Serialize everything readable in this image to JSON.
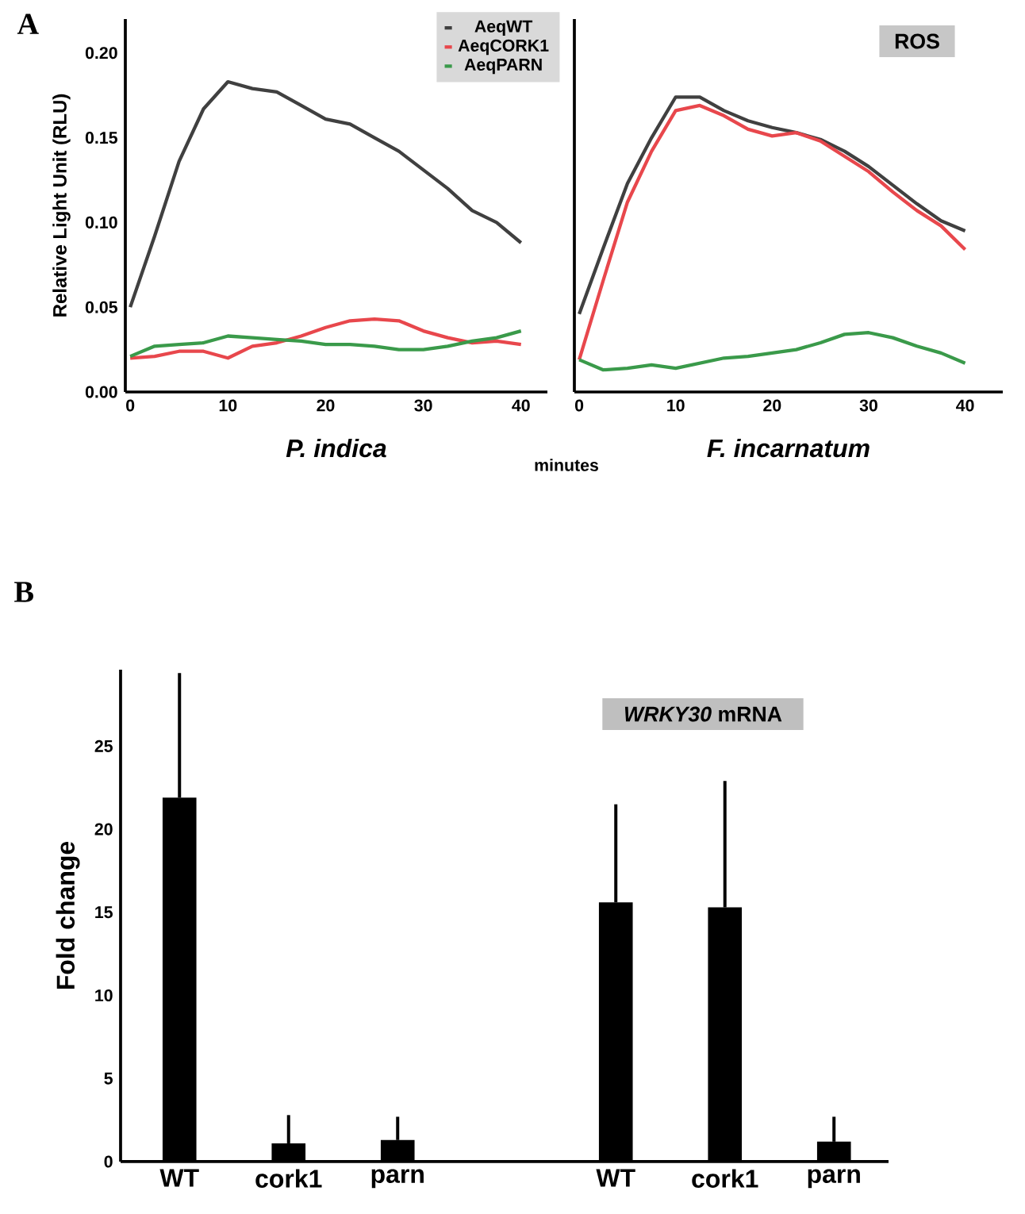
{
  "chart_data": [
    {
      "type": "line",
      "ylabel": "Relative Light Unit (RLU)",
      "xlabel": "P. indica",
      "annotations": [
        "A",
        "minutes"
      ],
      "x": [
        0,
        2.5,
        5,
        7.5,
        10,
        12.5,
        15,
        17.5,
        20,
        22.5,
        25,
        27.5,
        30,
        32.5,
        35,
        37.5,
        40
      ],
      "xlim": [
        -0.5,
        42.7
      ],
      "xticks": [
        0,
        10,
        20,
        30,
        40
      ],
      "ylim": [
        0,
        0.22
      ],
      "yticks": [
        {
          "value": 0,
          "label": "0.00"
        },
        0.05,
        {
          "value": 0.1,
          "label": "0.10"
        },
        0.15,
        {
          "value": 0.2,
          "label": "0.20"
        }
      ],
      "legend": "top right",
      "series": [
        {
          "name": "AeqWT",
          "color": "#404040",
          "values": [
            0.05,
            0.092,
            0.136,
            0.167,
            0.183,
            0.179,
            0.177,
            0.169,
            0.161,
            0.158,
            0.15,
            0.142,
            0.131,
            0.12,
            0.107,
            0.1,
            0.088
          ]
        },
        {
          "name": "AeqCORK1",
          "color": "#e8474c",
          "values": [
            0.02,
            0.021,
            0.024,
            0.024,
            0.02,
            0.027,
            0.029,
            0.033,
            0.038,
            0.042,
            0.043,
            0.042,
            0.036,
            0.032,
            0.029,
            0.03,
            0.028
          ]
        },
        {
          "name": "AeqPARN",
          "color": "#3a9a4a",
          "values": [
            0.021,
            0.027,
            0.028,
            0.029,
            0.033,
            0.032,
            0.031,
            0.03,
            0.028,
            0.028,
            0.027,
            0.025,
            0.025,
            0.027,
            0.03,
            0.032,
            0.036
          ]
        }
      ]
    },
    {
      "type": "line",
      "xlabel": "F. incarnatum",
      "annotations": [
        "ROS"
      ],
      "x": [
        0,
        2.5,
        5,
        7.5,
        10,
        12.5,
        15,
        17.5,
        20,
        22.5,
        25,
        27.5,
        30,
        32.5,
        35,
        37.5,
        40
      ],
      "xlim": [
        -0.5,
        43.9
      ],
      "xticks": [
        0,
        10,
        20,
        30,
        40
      ],
      "ylim": [
        0,
        0.22
      ],
      "tick_labels": "x",
      "series": [
        {
          "color": "#404040",
          "values": [
            0.046,
            0.085,
            0.123,
            0.15,
            0.174,
            0.174,
            0.166,
            0.16,
            0.156,
            0.153,
            0.149,
            0.142,
            0.133,
            0.122,
            0.111,
            0.101,
            0.095
          ]
        },
        {
          "color": "#e8474c",
          "values": [
            0.019,
            0.066,
            0.112,
            0.142,
            0.166,
            0.169,
            0.163,
            0.155,
            0.151,
            0.153,
            0.148,
            0.139,
            0.13,
            0.118,
            0.107,
            0.098,
            0.084
          ]
        },
        {
          "color": "#3a9a4a",
          "values": [
            0.019,
            0.013,
            0.014,
            0.016,
            0.014,
            0.017,
            0.02,
            0.021,
            0.023,
            0.025,
            0.029,
            0.034,
            0.035,
            0.032,
            0.027,
            0.023,
            0.017
          ]
        }
      ]
    },
    {
      "type": "bar",
      "ylabel": "Fold change",
      "annotations": [
        "B",
        "*WRKY30* mRNA"
      ],
      "categories": [
        "WT",
        "cork1",
        "parn",
        null,
        "WT",
        "cork1",
        "parn"
      ],
      "values": [
        21.9,
        1.1,
        1.3,
        null,
        15.6,
        15.3,
        1.2
      ],
      "errors": [
        [
          21.9,
          29.4
        ],
        [
          1.1,
          2.8
        ],
        [
          1.3,
          2.7
        ],
        null,
        [
          15.6,
          21.5
        ],
        [
          15.3,
          22.9
        ],
        [
          1.2,
          2.7
        ]
      ],
      "color": "#000000",
      "ylim": [
        0,
        29.6
      ],
      "yticks": [
        0,
        5,
        10,
        15,
        20,
        25
      ]
    }
  ]
}
